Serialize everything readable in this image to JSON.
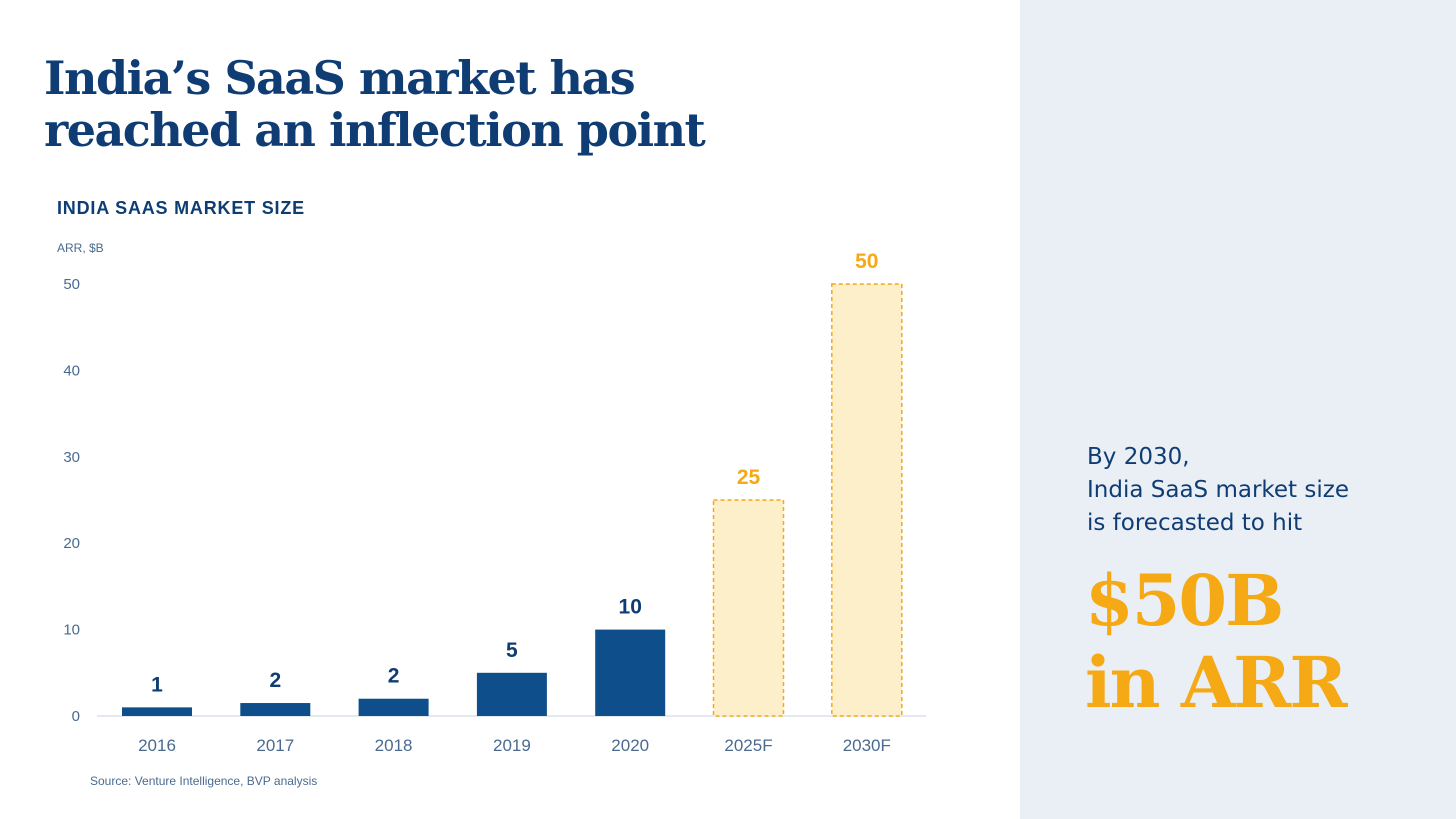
{
  "headline": {
    "line1": "India’s SaaS market has",
    "line2": "reached an inflection point"
  },
  "callout": {
    "line1": "By 2030,",
    "line2": "India SaaS market size",
    "line3": "is forecasted to hit",
    "figure_line1": "$50B",
    "figure_line2": "in ARR"
  },
  "colors": {
    "navy": "#0f3d73",
    "bar_actual": "#0e4f8b",
    "forecast_fill": "#fdefc9",
    "forecast_stroke": "#f5a914",
    "side_panel": "#eaeff6"
  },
  "chart_data": {
    "type": "bar",
    "title": "INDIA SAAS MARKET SIZE",
    "ylabel": "ARR, $B",
    "xlabel": "",
    "source": "Source: Venture Intelligence, BVP analysis",
    "ylim": [
      0,
      50
    ],
    "yticks": [
      "0",
      "10",
      "20",
      "30",
      "40",
      "50"
    ],
    "grid": false,
    "categories": [
      "2016",
      "2017",
      "2018",
      "2019",
      "2020",
      "2025F",
      "2030F"
    ],
    "values": [
      1,
      1.5,
      2,
      5,
      10,
      25,
      50
    ],
    "labels": [
      "1",
      "2",
      "2",
      "5",
      "10",
      "25",
      "50"
    ],
    "forecast": [
      false,
      false,
      false,
      false,
      false,
      true,
      true
    ]
  }
}
